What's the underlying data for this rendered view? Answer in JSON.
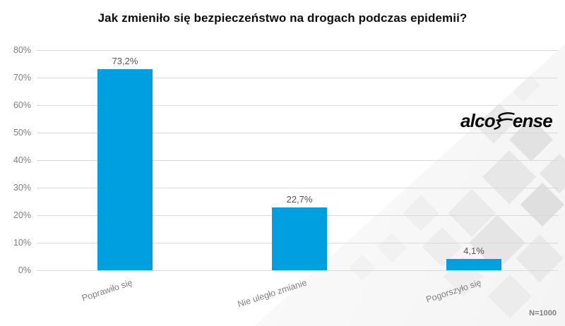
{
  "title": "Jak zmieniło się bezpieczeństwo na drogach podczas epidemii?",
  "footnote": "N=1000",
  "logo": {
    "name": "alcosense",
    "left": "alco",
    "right": "ense"
  },
  "chart_data": {
    "type": "bar",
    "title": "Jak zmieniło się bezpieczeństwo na drogach podczas epidemii?",
    "categories": [
      "Poprawiło się",
      "Nie uległo zmianie",
      "Pogorszyło się"
    ],
    "values": [
      73.2,
      22.7,
      4.1
    ],
    "value_labels": [
      "73,2%",
      "22,7%",
      "4,1%"
    ],
    "xlabel": "",
    "ylabel": "",
    "ylim": [
      0,
      80
    ],
    "ytick_labels": [
      "0%",
      "10%",
      "20%",
      "30%",
      "40%",
      "50%",
      "60%",
      "70%",
      "80%"
    ],
    "grid": true,
    "legend": false,
    "bar_color": "#009FE0",
    "sample_note": "N=1000"
  }
}
